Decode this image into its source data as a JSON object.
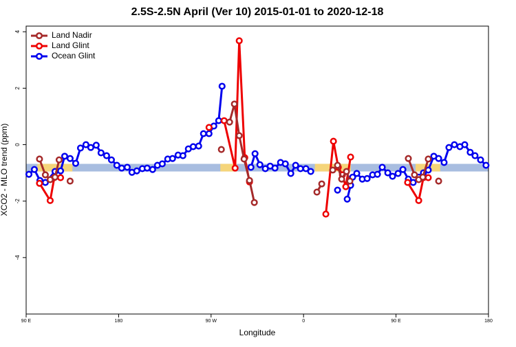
{
  "chart_data": {
    "type": "line",
    "title": "2.5S-2.5N April (Ver 10)   2015-01-01 to 2020-12-18",
    "x_label": "Longitude",
    "y_label": "XCO2 - MLO trend (ppm)",
    "xlim": [
      90,
      540
    ],
    "ylim": [
      -6,
      4.2
    ],
    "xticks": [
      {
        "value": 90,
        "label": "90 E"
      },
      {
        "value": 180,
        "label": "180"
      },
      {
        "value": 270,
        "label": "90 W"
      },
      {
        "value": 360,
        "label": "0"
      },
      {
        "value": 450,
        "label": "90 E"
      },
      {
        "value": 540,
        "label": "180"
      }
    ],
    "yticks": [
      4,
      2,
      0,
      -2,
      -4
    ],
    "legend": "top-left",
    "reference_band": {
      "ymin": -0.95,
      "ymax": -0.68,
      "color": "#a8bde0"
    },
    "highlight_ranges": {
      "color": "#f5d57a",
      "ranges": [
        [
          101,
          135
        ],
        [
          279,
          295
        ],
        [
          371,
          406
        ],
        [
          469,
          493
        ]
      ]
    },
    "series": [
      {
        "name": "Ocean Glint",
        "color": "#0000ee",
        "x": [
          92.7,
          98.0,
          103.4,
          108.7,
          118.1,
          123.5,
          127.5,
          132.8,
          138.2,
          142.9,
          148.2,
          152.9,
          158.2,
          162.9,
          168.3,
          173.0,
          178.3,
          183.0,
          188.4,
          193.0,
          197.7,
          203.1,
          207.8,
          213.1,
          217.8,
          222.5,
          227.8,
          232.5,
          237.9,
          242.6,
          247.9,
          252.6,
          257.9,
          262.6,
          268.0,
          272.7,
          277.4,
          280.7,
          294.0,
          308.8,
          312.8,
          317.5,
          322.8,
          327.5,
          332.2,
          337.6,
          342.3,
          347.6,
          352.3,
          357.0,
          362.3,
          367.0,
          380.0,
          393.1,
          398.0,
          402.5,
          405.8,
          407.8,
          411.8,
          417.2,
          421.9,
          427.2,
          431.9,
          436.6,
          442.0,
          446.6,
          452.0,
          456.7,
          462.0,
          466.7,
          472.1,
          476.7,
          481.4,
          486.8,
          491.5,
          496.8,
          501.5,
          506.8,
          512.2,
          516.9,
          522.2,
          526.9,
          532.3,
          537.6
        ],
        "values": [
          -1.05,
          -0.88,
          -1.27,
          -1.34,
          -0.95,
          -0.93,
          -0.41,
          -0.49,
          -0.66,
          -0.12,
          0.0,
          -0.1,
          -0.02,
          -0.29,
          -0.39,
          -0.54,
          -0.73,
          -0.83,
          -0.8,
          -0.98,
          -0.93,
          -0.85,
          -0.83,
          -0.88,
          -0.73,
          -0.68,
          -0.51,
          -0.49,
          -0.37,
          -0.39,
          -0.15,
          -0.07,
          -0.05,
          0.39,
          0.39,
          0.66,
          0.85,
          2.07,
          null,
          -0.8,
          -0.32,
          -0.71,
          -0.85,
          -0.76,
          -0.83,
          -0.63,
          -0.68,
          -1.02,
          -0.73,
          -0.85,
          -0.85,
          -0.95,
          null,
          -1.61,
          null,
          -1.93,
          -1.44,
          -1.15,
          -1.02,
          -1.22,
          -1.2,
          -1.07,
          -1.05,
          -0.8,
          -1.0,
          -1.12,
          -1.02,
          -0.88,
          -1.22,
          -1.34,
          -1.15,
          -1.0,
          -0.9,
          -0.41,
          -0.49,
          -0.63,
          -0.1,
          0.0,
          -0.07,
          0.0,
          -0.27,
          -0.39,
          -0.54,
          -0.73
        ]
      },
      {
        "name": "Land Glint",
        "color": "#ee0000",
        "x": [
          103.0,
          113.4,
          117.4,
          123.5,
          200.0,
          268.0,
          275.0,
          282.7,
          293.4,
          297.4,
          302.8,
          307.4,
          340.0,
          381.7,
          389.1,
          393.8,
          397.8,
          401.1,
          405.8,
          430.0,
          461.3,
          472.1,
          476.7,
          481.4
        ],
        "values": [
          -1.37,
          -1.98,
          -1.17,
          -1.17,
          null,
          0.61,
          null,
          0.85,
          -0.83,
          3.68,
          -0.46,
          -1.32,
          null,
          -2.46,
          0.12,
          -0.8,
          -1.07,
          -1.49,
          -0.44,
          null,
          -1.34,
          -1.98,
          -1.17,
          -1.17
        ]
      },
      {
        "name": "Land Nadir",
        "color": "#a52a2a",
        "x": [
          103.0,
          108.7,
          113.4,
          118.1,
          122.1,
          127.0,
          132.8,
          200.0,
          280.0,
          284.0,
          288.0,
          292.7,
          297.4,
          302.1,
          307.4,
          312.1,
          340.0,
          373.0,
          377.7,
          383.0,
          388.4,
          393.1,
          397.1,
          401.8,
          405.1,
          430.0,
          462.0,
          468.0,
          472.1,
          476.1,
          481.4,
          486.0,
          491.5
        ],
        "values": [
          -0.51,
          -1.07,
          -1.24,
          -1.15,
          -0.54,
          null,
          -1.29,
          null,
          -0.17,
          null,
          0.8,
          1.44,
          0.32,
          -0.51,
          -1.27,
          -2.05,
          null,
          -1.68,
          -1.39,
          null,
          -0.9,
          -0.73,
          -1.22,
          -0.95,
          -1.29,
          null,
          -0.49,
          -1.07,
          -1.24,
          -1.15,
          -0.51,
          null,
          -1.29
        ]
      }
    ]
  }
}
